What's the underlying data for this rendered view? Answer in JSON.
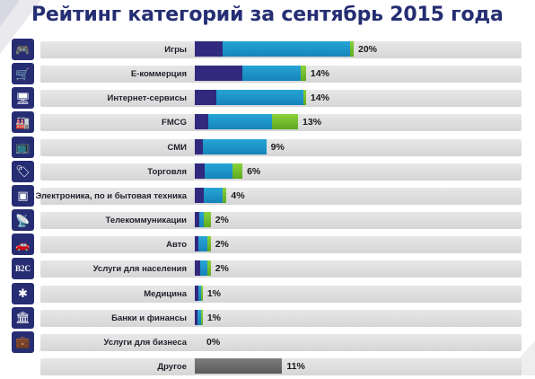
{
  "title": "Рейтинг категорий за сентябрь 2015 года",
  "colors": {
    "title": "#252e72",
    "icon_bg": "#262d73",
    "band": "#dcdcdc",
    "dark": "#30297e",
    "blue": "#1d93c8",
    "green": "#72be2c",
    "gray": "#6b6b6b"
  },
  "chart_data": {
    "type": "bar",
    "orientation": "horizontal",
    "stacked": true,
    "title": "Рейтинг категорий за сентябрь 2015 года",
    "categories": [
      "Игры",
      "E-коммерция",
      "Интернет-сервисы",
      "FMCG",
      "СМИ",
      "Торговля",
      "Электроника, по и бытовая техника",
      "Телекоммуникации",
      "Авто",
      "Услуги для населения",
      "Медицина",
      "Банки и финансы",
      "Услуги для бизнеса",
      "Другое"
    ],
    "value_labels": [
      "20%",
      "14%",
      "14%",
      "13%",
      "9%",
      "6%",
      "4%",
      "2%",
      "2%",
      "2%",
      "1%",
      "1%",
      "0%",
      "11%"
    ],
    "values": [
      20,
      14,
      14,
      13,
      9,
      6,
      4,
      2,
      2,
      2,
      1,
      1,
      0,
      11
    ],
    "segments": [
      {
        "dark": 3.5,
        "blue": 16.0,
        "green": 0.5
      },
      {
        "dark": 6.0,
        "blue": 7.3,
        "green": 0.7
      },
      {
        "dark": 2.7,
        "blue": 11.0,
        "green": 0.3
      },
      {
        "dark": 1.7,
        "blue": 8.0,
        "green": 3.3
      },
      {
        "dark": 1.0,
        "blue": 8.0,
        "green": 0.0
      },
      {
        "dark": 1.2,
        "blue": 3.5,
        "green": 1.3
      },
      {
        "dark": 1.1,
        "blue": 2.4,
        "green": 0.5
      },
      {
        "dark": 0.6,
        "blue": 0.5,
        "green": 0.9
      },
      {
        "dark": 0.5,
        "blue": 1.1,
        "green": 0.4
      },
      {
        "dark": 0.7,
        "blue": 0.9,
        "green": 0.4
      },
      {
        "dark": 0.4,
        "blue": 0.4,
        "green": 0.2
      },
      {
        "dark": 0.3,
        "blue": 0.5,
        "green": 0.2
      },
      {
        "dark": 0.0,
        "blue": 0.0,
        "green": 0.0
      },
      {
        "gray": 11.0
      }
    ],
    "icons": [
      "gamepad-icon",
      "ecommerce-cart-icon",
      "web-service-monitor-icon",
      "fmcg-products-icon",
      "tv-icon",
      "shopping-tag-icon",
      "washing-machine-icon",
      "antenna-icon",
      "car-icon",
      "b2c-icon",
      "medical-star-icon",
      "bank-icon",
      "briefcase-icon",
      ""
    ],
    "icon_glyphs": [
      "🎮",
      "🛒",
      "🖥",
      "🏭",
      "📺",
      "🏷",
      "▣",
      "📡",
      "🚗",
      "B2C",
      "✱",
      "🏛",
      "💼",
      ""
    ],
    "xlim": [
      0,
      20
    ],
    "grid": false,
    "legend": "none"
  }
}
